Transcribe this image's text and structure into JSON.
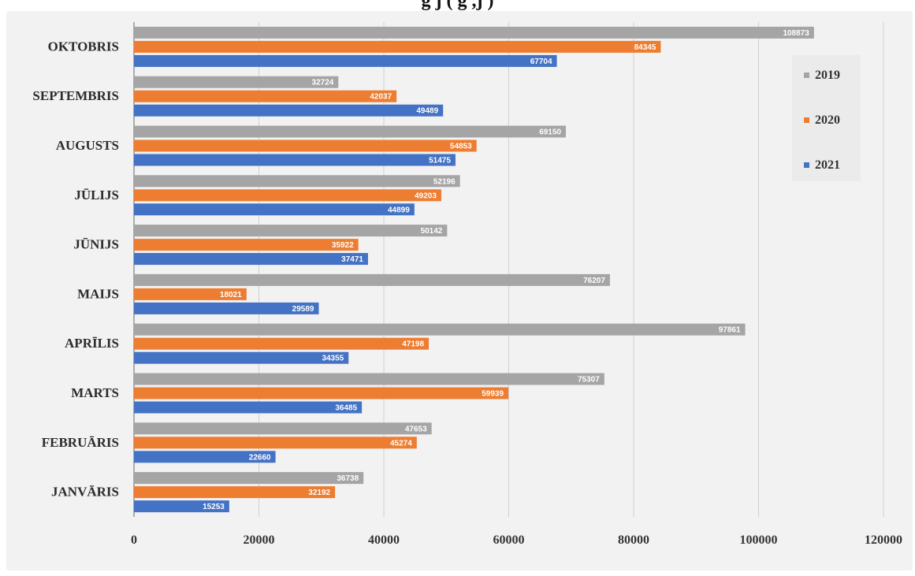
{
  "header": {
    "title_fragment": "g               j                (                    g  ,j                 )"
  },
  "chart_data": {
    "type": "bar",
    "orientation": "horizontal",
    "title": "",
    "xlabel": "",
    "ylabel": "",
    "xlim": [
      0,
      120000
    ],
    "x_ticks": [
      "0",
      "20000",
      "40000",
      "60000",
      "80000",
      "100000",
      "120000"
    ],
    "grid": true,
    "legend_position": "right",
    "categories": [
      "JANVĀRIS",
      "FEBRUĀRIS",
      "MARTS",
      "APRĪLIS",
      "MAIJS",
      "JŪNIJS",
      "JŪLIJS",
      "AUGUSTS",
      "SEPTEMBRIS",
      "OKTOBRIS"
    ],
    "series": [
      {
        "name": "2019",
        "color": "#a5a5a5",
        "values": [
          36738,
          47653,
          75307,
          97861,
          76207,
          50142,
          52196,
          69150,
          32724,
          108873
        ]
      },
      {
        "name": "2020",
        "color": "#ed7d31",
        "values": [
          32192,
          45274,
          59939,
          47198,
          18021,
          35922,
          49203,
          54853,
          42037,
          84345
        ]
      },
      {
        "name": "2021",
        "color": "#4472c4",
        "values": [
          15253,
          22660,
          36485,
          34355,
          29589,
          37471,
          44899,
          51475,
          49489,
          67704
        ]
      }
    ]
  }
}
